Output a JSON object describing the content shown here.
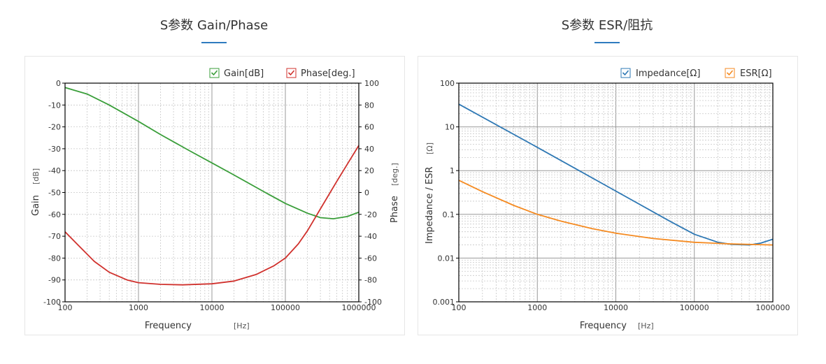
{
  "sections": [
    {
      "title": "S参数 Gain/Phase"
    },
    {
      "title": "S参数 ESR/阻抗"
    }
  ],
  "charts": [
    {
      "legend": [
        {
          "label": "Gain[dB]",
          "color": "#3a9e3a"
        },
        {
          "label": "Phase[deg.]",
          "color": "#d0312d"
        }
      ],
      "xlabel": "Frequency",
      "xunit": "[Hz]",
      "ylabel_left": "Gain",
      "yunit_left": "[dB]",
      "ylabel_right": "Phase",
      "yunit_right": "[deg.]",
      "xticks": [
        "100",
        "1000",
        "10000",
        "100000",
        "1000000"
      ],
      "yticks_left": [
        "0",
        "-10",
        "-20",
        "-30",
        "-40",
        "-50",
        "-60",
        "-70",
        "-80",
        "-90",
        "-100"
      ],
      "yticks_right": [
        "100",
        "80",
        "60",
        "40",
        "20",
        "0",
        "-20",
        "-40",
        "-60",
        "-80",
        "-100"
      ]
    },
    {
      "legend": [
        {
          "label": "Impedance[Ω]",
          "color": "#2e78b4"
        },
        {
          "label": "ESR[Ω]",
          "color": "#f58a20"
        }
      ],
      "xlabel": "Frequency",
      "xunit": "[Hz]",
      "ylabel": "Impedance / ESR",
      "yunit": "[Ω]",
      "xticks": [
        "100",
        "1000",
        "10000",
        "100000",
        "1000000"
      ],
      "yticks": [
        "100",
        "10",
        "1",
        "0.1",
        "0.01",
        "0.001"
      ]
    }
  ],
  "chart_data": [
    {
      "type": "line",
      "xscale": "log",
      "xlim": [
        100,
        1000000
      ],
      "ylim_left": [
        -100,
        0
      ],
      "ylim_right": [
        -100,
        100
      ],
      "grid": true,
      "legend_position": "top-right",
      "series": [
        {
          "name": "Gain[dB]",
          "axis": "left",
          "color": "#3a9e3a",
          "x": [
            100,
            200,
            400,
            1000,
            2000,
            5000,
            10000,
            20000,
            50000,
            100000,
            200000,
            300000,
            450000,
            700000,
            1000000
          ],
          "y": [
            -2,
            -5,
            -10,
            -17.5,
            -23.5,
            -31,
            -36.5,
            -42,
            -49.5,
            -55,
            -59.5,
            -61.5,
            -62,
            -61,
            -59
          ]
        },
        {
          "name": "Phase[deg.]",
          "axis": "right",
          "color": "#d0312d",
          "x": [
            100,
            150,
            250,
            400,
            700,
            1000,
            2000,
            4000,
            10000,
            20000,
            40000,
            70000,
            100000,
            150000,
            200000,
            300000,
            500000,
            700000,
            1000000
          ],
          "y": [
            -36,
            -48,
            -63,
            -73,
            -80,
            -82.5,
            -84,
            -84.5,
            -83.5,
            -81,
            -75,
            -67,
            -60,
            -47,
            -35,
            -15,
            10,
            26,
            43
          ]
        }
      ]
    },
    {
      "type": "line",
      "xscale": "log",
      "yscale": "log",
      "xlim": [
        100,
        1000000
      ],
      "ylim": [
        0.001,
        100
      ],
      "grid": true,
      "legend_position": "top-right",
      "series": [
        {
          "name": "Impedance[Ω]",
          "color": "#2e78b4",
          "x": [
            100,
            1000,
            10000,
            50000,
            100000,
            200000,
            300000,
            500000,
            700000,
            1000000
          ],
          "y": [
            33,
            3.4,
            0.34,
            0.068,
            0.035,
            0.023,
            0.0205,
            0.02,
            0.022,
            0.027
          ]
        },
        {
          "name": "ESR[Ω]",
          "color": "#f58a20",
          "x": [
            100,
            200,
            500,
            1000,
            2000,
            5000,
            10000,
            30000,
            100000,
            300000,
            1000000
          ],
          "y": [
            0.6,
            0.33,
            0.16,
            0.1,
            0.07,
            0.047,
            0.037,
            0.028,
            0.023,
            0.021,
            0.02
          ]
        }
      ]
    }
  ]
}
